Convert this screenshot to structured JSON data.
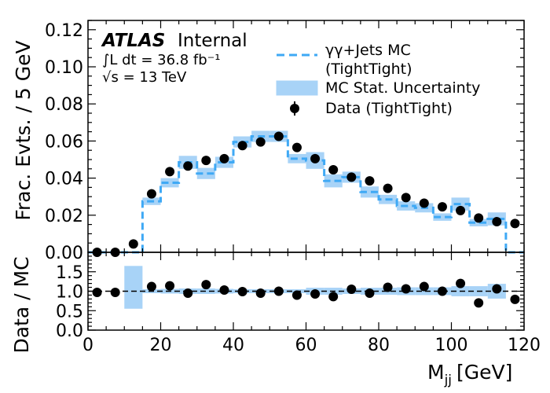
{
  "chart_data": [
    {
      "type": "histogram",
      "panel": "main",
      "experiment": "ATLAS",
      "status": "Internal",
      "lumi_text": "∫L dt = 36.8 fb⁻¹",
      "energy_text": "√s = 13 TeV",
      "ylabel": "Frac. Evts. / 5 GeV",
      "xlabel": "M",
      "xlabel_sub": "jj",
      "xlabel_unit": "[GeV]",
      "xlim": [
        0,
        120
      ],
      "ylim": [
        0,
        0.125
      ],
      "x_ticks": [
        0,
        20,
        40,
        60,
        80,
        100,
        120
      ],
      "y_ticks": [
        "0.00",
        "0.02",
        "0.04",
        "0.06",
        "0.08",
        "0.10",
        "0.12"
      ],
      "legend_position": "top-right",
      "legend": [
        {
          "label": "γγ+Jets MC",
          "label2": "(TightTight)",
          "style": "dashed-line"
        },
        {
          "label": "MC Stat. Uncertainty",
          "style": "band"
        },
        {
          "label": "Data (TightTight)",
          "style": "marker"
        }
      ],
      "bin_edges": [
        0,
        5,
        10,
        15,
        20,
        25,
        30,
        35,
        40,
        45,
        50,
        55,
        60,
        65,
        70,
        75,
        80,
        85,
        90,
        95,
        100,
        105,
        110,
        115,
        120
      ],
      "series": [
        {
          "name": "γγ+Jets MC",
          "values": [
            0.0,
            0.0,
            0.0,
            0.0275,
            0.0375,
            0.0485,
            0.0425,
            0.0485,
            0.0595,
            0.0625,
            0.0625,
            0.0505,
            0.0495,
            0.0385,
            0.0405,
            0.0325,
            0.0285,
            0.025,
            0.024,
            0.019,
            0.026,
            0.016,
            0.018,
            0.0
          ],
          "uncertainty": [
            0.0,
            0.0,
            0.0,
            0.002,
            0.0025,
            0.0035,
            0.003,
            0.003,
            0.003,
            0.003,
            0.003,
            0.0025,
            0.0045,
            0.0035,
            0.003,
            0.003,
            0.0025,
            0.0025,
            0.0025,
            0.002,
            0.0035,
            0.002,
            0.0035,
            0.0
          ]
        },
        {
          "name": "Data (TightTight)",
          "x": [
            2.5,
            7.5,
            12.5,
            17.5,
            22.5,
            27.5,
            32.5,
            37.5,
            42.5,
            47.5,
            52.5,
            57.5,
            62.5,
            67.5,
            72.5,
            77.5,
            82.5,
            87.5,
            92.5,
            97.5,
            102.5,
            107.5,
            112.5,
            117.5
          ],
          "values": [
            0.0,
            0.0,
            0.0045,
            0.0315,
            0.0435,
            0.0465,
            0.0495,
            0.0505,
            0.0575,
            0.0595,
            0.0625,
            0.0565,
            0.0505,
            0.0445,
            0.0405,
            0.0385,
            0.0345,
            0.0295,
            0.0265,
            0.0245,
            0.0225,
            0.0185,
            0.0165,
            0.0155
          ]
        }
      ]
    },
    {
      "type": "ratio",
      "panel": "ratio",
      "ylabel": "Data / MC",
      "xlim": [
        0,
        120
      ],
      "ylim": [
        0.0,
        2.0
      ],
      "y_ticks": [
        "0.0",
        "0.5",
        "1.0",
        "1.5"
      ],
      "reference_line": 1.0,
      "band": [
        0.0,
        0.0,
        0.0,
        0.05,
        0.06,
        0.07,
        0.07,
        0.06,
        0.05,
        0.05,
        0.05,
        0.05,
        0.09,
        0.09,
        0.07,
        0.09,
        0.09,
        0.1,
        0.1,
        0.1,
        0.13,
        0.13,
        0.19,
        0.0
      ],
      "band_overrides": [
        {
          "bin": 2,
          "low": 0.55,
          "high": 1.65
        }
      ],
      "x": [
        2.5,
        7.5,
        17.5,
        22.5,
        27.5,
        32.5,
        37.5,
        42.5,
        47.5,
        52.5,
        57.5,
        62.5,
        67.5,
        72.5,
        77.5,
        82.5,
        87.5,
        92.5,
        97.5,
        102.5,
        107.5,
        112.5,
        117.5
      ],
      "values": [
        0.97,
        0.97,
        1.12,
        1.14,
        0.95,
        1.17,
        1.03,
        0.99,
        0.95,
        1.0,
        0.9,
        0.93,
        0.86,
        1.05,
        0.95,
        1.1,
        1.06,
        1.12,
        1.0,
        1.2,
        0.7,
        1.06,
        0.79
      ]
    }
  ]
}
